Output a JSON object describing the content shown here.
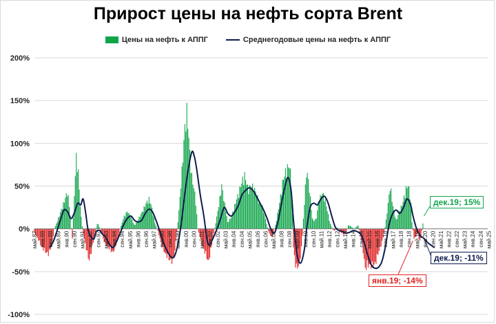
{
  "chart_data": {
    "type": "bar",
    "title": "Прирост цены на нефть сорта Brent",
    "legend": {
      "placement": "top",
      "bar_label": "Цены на нефть к АППГ",
      "line_label": "Среднегодовые цены на нефть к АППГ"
    },
    "ylim": [
      -100,
      200
    ],
    "yticks": [
      "200%",
      "150%",
      "100%",
      "50%",
      "0%",
      "-50%",
      "-100%"
    ],
    "y_unit": "%",
    "grid": true,
    "xlim": [
      1987.33,
      2025.25
    ],
    "x_tick_labels": [
      "май.87",
      "янв.88",
      "сен.88",
      "май.89",
      "янв.90",
      "сен.90",
      "май.91",
      "янв.92",
      "сен.92",
      "май.93",
      "янв.94",
      "сен.94",
      "май.95",
      "янв.96",
      "сен.96",
      "май.97",
      "янв.98",
      "сен.98",
      "май.99",
      "янв.00",
      "сен.00",
      "май.01",
      "янв.02",
      "сен.02",
      "май.03",
      "янв.04",
      "сен.04",
      "май.05",
      "янв.06",
      "сен.06",
      "май.07",
      "янв.08",
      "сен.08",
      "май.09",
      "янв.10",
      "сен.10",
      "май.11",
      "янв.12",
      "сен.12",
      "май.13",
      "янв.14",
      "сен.14",
      "май.15",
      "янв.16",
      "сен.16",
      "май.17",
      "янв.18",
      "сен.18",
      "май.19",
      "янв.20",
      "сен.20",
      "май.21",
      "янв.22",
      "сен.22",
      "май.23",
      "янв.24",
      "сен.24",
      "май.25"
    ],
    "colors": {
      "positive_bar": "#10a54a",
      "negative_bar": "#e02020",
      "line": "#0d1b4d"
    },
    "bar_keypoints": [
      [
        1987.33,
        -5
      ],
      [
        1987.6,
        -12
      ],
      [
        1987.9,
        -22
      ],
      [
        1988.2,
        -28
      ],
      [
        1988.5,
        -32
      ],
      [
        1988.8,
        -20
      ],
      [
        1989.0,
        0
      ],
      [
        1989.3,
        12
      ],
      [
        1989.6,
        25
      ],
      [
        1989.9,
        38
      ],
      [
        1990.1,
        48
      ],
      [
        1990.3,
        22
      ],
      [
        1990.5,
        -15
      ],
      [
        1990.7,
        55
      ],
      [
        1990.85,
        95
      ],
      [
        1991.0,
        70
      ],
      [
        1991.2,
        20
      ],
      [
        1991.4,
        -5
      ],
      [
        1991.7,
        -28
      ],
      [
        1991.9,
        -40
      ],
      [
        1992.1,
        -28
      ],
      [
        1992.4,
        -5
      ],
      [
        1992.6,
        8
      ],
      [
        1992.9,
        -3
      ],
      [
        1993.2,
        -18
      ],
      [
        1993.6,
        -25
      ],
      [
        1993.9,
        -30
      ],
      [
        1994.2,
        -18
      ],
      [
        1994.5,
        0
      ],
      [
        1994.8,
        15
      ],
      [
        1995.1,
        22
      ],
      [
        1995.4,
        15
      ],
      [
        1995.7,
        4
      ],
      [
        1996.0,
        12
      ],
      [
        1996.3,
        20
      ],
      [
        1996.6,
        30
      ],
      [
        1996.9,
        38
      ],
      [
        1997.1,
        30
      ],
      [
        1997.4,
        8
      ],
      [
        1997.7,
        -5
      ],
      [
        1998.0,
        -22
      ],
      [
        1998.3,
        -32
      ],
      [
        1998.6,
        -38
      ],
      [
        1998.9,
        -42
      ],
      [
        1999.1,
        -25
      ],
      [
        1999.4,
        20
      ],
      [
        1999.7,
        80
      ],
      [
        1999.9,
        125
      ],
      [
        2000.1,
        150
      ],
      [
        2000.3,
        100
      ],
      [
        2000.5,
        65
      ],
      [
        2000.8,
        40
      ],
      [
        2001.0,
        0
      ],
      [
        2001.3,
        -18
      ],
      [
        2001.6,
        -30
      ],
      [
        2001.9,
        -42
      ],
      [
        2002.1,
        -25
      ],
      [
        2002.4,
        0
      ],
      [
        2002.7,
        25
      ],
      [
        2003.0,
        55
      ],
      [
        2003.2,
        35
      ],
      [
        2003.5,
        8
      ],
      [
        2003.8,
        15
      ],
      [
        2004.1,
        30
      ],
      [
        2004.4,
        45
      ],
      [
        2004.7,
        60
      ],
      [
        2004.9,
        68
      ],
      [
        2005.2,
        50
      ],
      [
        2005.5,
        55
      ],
      [
        2005.8,
        48
      ],
      [
        2006.1,
        35
      ],
      [
        2006.4,
        28
      ],
      [
        2006.7,
        10
      ],
      [
        2006.9,
        -3
      ],
      [
        2007.2,
        -12
      ],
      [
        2007.5,
        5
      ],
      [
        2007.8,
        30
      ],
      [
        2008.1,
        60
      ],
      [
        2008.4,
        75
      ],
      [
        2008.7,
        80
      ],
      [
        2008.85,
        50
      ],
      [
        2009.0,
        -25
      ],
      [
        2009.2,
        -50
      ],
      [
        2009.5,
        -45
      ],
      [
        2009.7,
        -20
      ],
      [
        2009.9,
        30
      ],
      [
        2010.1,
        75
      ],
      [
        2010.3,
        55
      ],
      [
        2010.6,
        10
      ],
      [
        2010.9,
        12
      ],
      [
        2011.1,
        35
      ],
      [
        2011.4,
        45
      ],
      [
        2011.6,
        40
      ],
      [
        2011.8,
        25
      ],
      [
        2012.1,
        5
      ],
      [
        2012.4,
        -3
      ],
      [
        2012.7,
        2
      ],
      [
        2013.0,
        -5
      ],
      [
        2013.3,
        -8
      ],
      [
        2013.6,
        5
      ],
      [
        2013.9,
        2
      ],
      [
        2014.1,
        0
      ],
      [
        2014.4,
        5
      ],
      [
        2014.6,
        -8
      ],
      [
        2014.8,
        -25
      ],
      [
        2015.0,
        -50
      ],
      [
        2015.3,
        -45
      ],
      [
        2015.6,
        -48
      ],
      [
        2015.9,
        -42
      ],
      [
        2016.1,
        -30
      ],
      [
        2016.4,
        -18
      ],
      [
        2016.7,
        5
      ],
      [
        2016.9,
        30
      ],
      [
        2017.1,
        55
      ],
      [
        2017.3,
        30
      ],
      [
        2017.6,
        10
      ],
      [
        2017.9,
        25
      ],
      [
        2018.1,
        30
      ],
      [
        2018.4,
        50
      ],
      [
        2018.6,
        55
      ],
      [
        2018.8,
        40
      ],
      [
        2018.9,
        10
      ],
      [
        2019.1,
        -14
      ],
      [
        2019.4,
        -5
      ],
      [
        2019.6,
        -18
      ],
      [
        2019.9,
        15
      ]
    ],
    "line_keypoints": [
      [
        1988.6,
        -22
      ],
      [
        1988.9,
        -15
      ],
      [
        1989.2,
        -3
      ],
      [
        1989.5,
        10
      ],
      [
        1989.8,
        22
      ],
      [
        1990.1,
        20
      ],
      [
        1990.4,
        12
      ],
      [
        1990.7,
        20
      ],
      [
        1990.95,
        30
      ],
      [
        1991.2,
        28
      ],
      [
        1991.4,
        35
      ],
      [
        1991.6,
        20
      ],
      [
        1991.8,
        0
      ],
      [
        1992.0,
        -8
      ],
      [
        1992.3,
        -12
      ],
      [
        1992.5,
        -3
      ],
      [
        1992.8,
        -2
      ],
      [
        1993.0,
        -6
      ],
      [
        1993.3,
        -10
      ],
      [
        1993.6,
        -18
      ],
      [
        1993.9,
        -22
      ],
      [
        1994.2,
        -15
      ],
      [
        1994.5,
        -5
      ],
      [
        1994.8,
        5
      ],
      [
        1995.1,
        12
      ],
      [
        1995.4,
        15
      ],
      [
        1995.7,
        10
      ],
      [
        1996.0,
        8
      ],
      [
        1996.3,
        10
      ],
      [
        1996.6,
        18
      ],
      [
        1996.9,
        23
      ],
      [
        1997.2,
        20
      ],
      [
        1997.5,
        10
      ],
      [
        1997.8,
        -2
      ],
      [
        1998.1,
        -15
      ],
      [
        1998.4,
        -25
      ],
      [
        1998.7,
        -32
      ],
      [
        1999.0,
        -33
      ],
      [
        1999.3,
        -20
      ],
      [
        1999.6,
        5
      ],
      [
        1999.9,
        40
      ],
      [
        2000.2,
        70
      ],
      [
        2000.5,
        90
      ],
      [
        2000.7,
        85
      ],
      [
        2000.9,
        70
      ],
      [
        2001.2,
        40
      ],
      [
        2001.5,
        15
      ],
      [
        2001.8,
        -15
      ],
      [
        2002.0,
        -18
      ],
      [
        2002.3,
        -10
      ],
      [
        2002.6,
        0
      ],
      [
        2002.9,
        12
      ],
      [
        2003.2,
        25
      ],
      [
        2003.5,
        18
      ],
      [
        2003.8,
        15
      ],
      [
        2004.1,
        20
      ],
      [
        2004.4,
        28
      ],
      [
        2004.7,
        40
      ],
      [
        2005.0,
        45
      ],
      [
        2005.3,
        48
      ],
      [
        2005.6,
        45
      ],
      [
        2005.9,
        38
      ],
      [
        2006.2,
        30
      ],
      [
        2006.5,
        22
      ],
      [
        2006.8,
        12
      ],
      [
        2007.1,
        0
      ],
      [
        2007.4,
        -5
      ],
      [
        2007.7,
        8
      ],
      [
        2008.0,
        30
      ],
      [
        2008.3,
        50
      ],
      [
        2008.55,
        60
      ],
      [
        2008.8,
        45
      ],
      [
        2009.0,
        10
      ],
      [
        2009.3,
        -30
      ],
      [
        2009.6,
        -40
      ],
      [
        2009.9,
        -25
      ],
      [
        2010.1,
        0
      ],
      [
        2010.4,
        25
      ],
      [
        2010.7,
        30
      ],
      [
        2011.0,
        28
      ],
      [
        2011.3,
        35
      ],
      [
        2011.6,
        38
      ],
      [
        2011.9,
        30
      ],
      [
        2012.2,
        15
      ],
      [
        2012.5,
        2
      ],
      [
        2012.8,
        -2
      ],
      [
        2013.1,
        -3
      ],
      [
        2013.4,
        -5
      ],
      [
        2013.7,
        -4
      ],
      [
        2014.0,
        -2
      ],
      [
        2014.3,
        -3
      ],
      [
        2014.6,
        -6
      ],
      [
        2014.9,
        -15
      ],
      [
        2015.2,
        -30
      ],
      [
        2015.5,
        -42
      ],
      [
        2015.8,
        -46
      ],
      [
        2016.1,
        -45
      ],
      [
        2016.4,
        -38
      ],
      [
        2016.7,
        -20
      ],
      [
        2017.0,
        5
      ],
      [
        2017.3,
        18
      ],
      [
        2017.6,
        22
      ],
      [
        2017.9,
        18
      ],
      [
        2018.2,
        25
      ],
      [
        2018.5,
        35
      ],
      [
        2018.8,
        28
      ],
      [
        2019.0,
        15
      ],
      [
        2019.3,
        0
      ],
      [
        2019.6,
        -8
      ],
      [
        2019.9,
        -11
      ],
      [
        2020.3,
        -17
      ],
      [
        2020.8,
        -22
      ]
    ],
    "annotations": [
      {
        "text": "дек.19; 15%",
        "x": 2019.92,
        "y": 15
      },
      {
        "text": "дек.19; -11%",
        "x": 2019.92,
        "y": -11
      },
      {
        "text": "янв.19; -14%",
        "x": 2019.0,
        "y": -14
      }
    ]
  }
}
